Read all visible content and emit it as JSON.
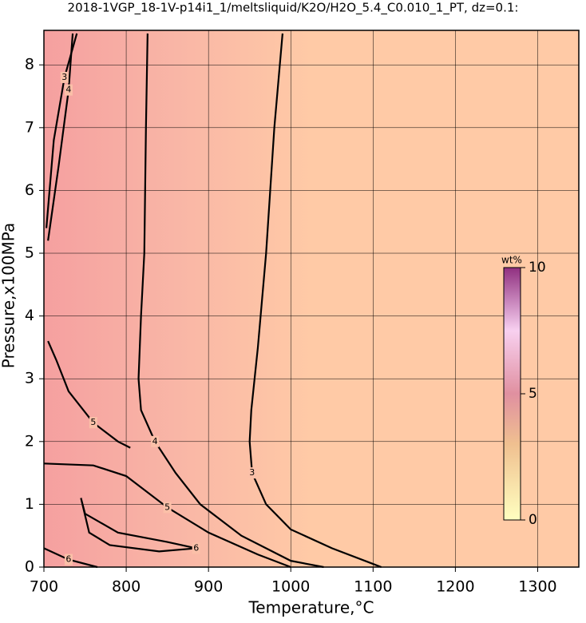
{
  "chart_data": {
    "type": "contour",
    "title": "2018-1VGP_18-1V-p14i1_1/meltsliquid/K2O/H2O_5.4_C0.010_1_PT, dz=0.1:",
    "x_label": "Temperature,°C",
    "y_label": "Pressure,x100MPa",
    "xlim": [
      700,
      1350
    ],
    "ylim": [
      0,
      8.55
    ],
    "xticks": [
      700,
      800,
      900,
      1000,
      1100,
      1200,
      1300
    ],
    "yticks": [
      0,
      1,
      2,
      3,
      4,
      5,
      6,
      7,
      8
    ],
    "grid": true,
    "contours": [
      {
        "level": 3,
        "x": [
          990,
          980,
          970,
          960,
          952,
          950,
          953,
          970,
          1000,
          1050,
          1100,
          1110
        ],
        "y": [
          8.5,
          7,
          5,
          3.5,
          2.5,
          2,
          1.5,
          1,
          0.6,
          0.3,
          0.05,
          0
        ]
      },
      {
        "level": 4,
        "x": [
          826,
          824,
          822,
          818,
          815,
          818,
          835,
          860,
          890,
          940,
          1000,
          1040
        ],
        "y": [
          8.5,
          7,
          5,
          4,
          3,
          2.5,
          2,
          1.5,
          1,
          0.5,
          0.1,
          0
        ]
      },
      {
        "level": 5,
        "x": [
          705,
          715,
          730,
          760,
          790,
          805
        ],
        "y": [
          3.6,
          3.3,
          2.8,
          2.3,
          2.0,
          1.9
        ]
      },
      {
        "level": 5,
        "x": [
          700,
          760,
          800,
          850,
          900,
          960,
          1000
        ],
        "y": [
          1.65,
          1.62,
          1.45,
          0.95,
          0.55,
          0.2,
          0
        ]
      },
      {
        "level": 6,
        "x": [
          745,
          750,
          790,
          850,
          885,
          840,
          780,
          755,
          745
        ],
        "y": [
          1.1,
          0.85,
          0.55,
          0.4,
          0.3,
          0.25,
          0.35,
          0.55,
          1.1
        ]
      },
      {
        "level": 6,
        "x": [
          700,
          730,
          765
        ],
        "y": [
          0.3,
          0.12,
          0
        ]
      },
      {
        "level": 3,
        "x": [
          703,
          712,
          725,
          740
        ],
        "y": [
          5.4,
          6.8,
          7.8,
          8.5
        ]
      },
      {
        "level": 4,
        "x": [
          705,
          718,
          730,
          735
        ],
        "y": [
          5.2,
          6.4,
          7.6,
          8.5
        ]
      }
    ],
    "colorbar": {
      "label": "wt%",
      "lim": [
        0,
        10
      ],
      "ticks": [
        0,
        5,
        10
      ]
    }
  }
}
